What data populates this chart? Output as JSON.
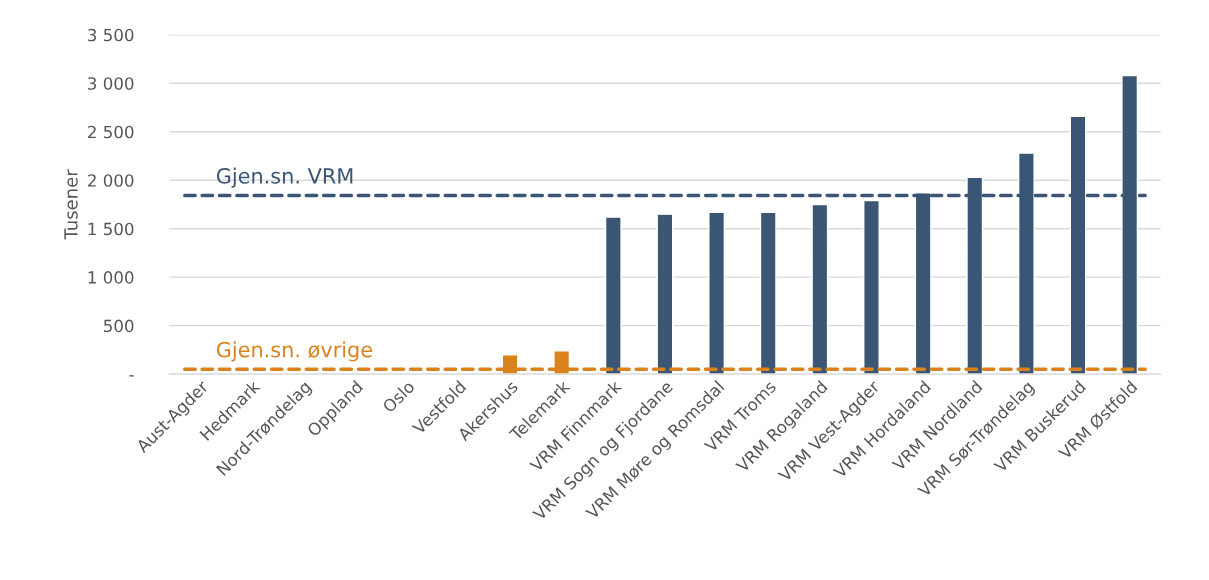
{
  "chart_data": {
    "type": "bar",
    "ylabel": "Tusener",
    "categories": [
      "Aust-Agder",
      "Hedmark",
      "Nord-Trøndelag",
      "Oppland",
      "Oslo",
      "Vestfold",
      "Akershus",
      "Telemark",
      "VRM Finnmark",
      "VRM Sogn og Fjordane",
      "VRM Møre og Romsdal",
      "VRM Troms",
      "VRM Rogaland",
      "VRM Vest-Agder",
      "VRM Hordaland",
      "VRM Nordland",
      "VRM Sør-Trøndelag",
      "VRM Buskerud",
      "VRM Østfold"
    ],
    "values": [
      0,
      0,
      0,
      0,
      0,
      0,
      200,
      240,
      1620,
      1650,
      1670,
      1670,
      1750,
      1790,
      1870,
      2030,
      2280,
      2660,
      3080
    ],
    "colors": [
      null,
      null,
      null,
      null,
      null,
      null,
      "#d9821e",
      "#d9821e",
      "#3a5674",
      "#3a5674",
      "#3a5674",
      "#3a5674",
      "#3a5674",
      "#3a5674",
      "#3a5674",
      "#3a5674",
      "#3a5674",
      "#3a5674",
      "#3a5674"
    ],
    "ylim": [
      0,
      3500
    ],
    "yticks": [
      {
        "value": 0,
        "label": "-"
      },
      {
        "value": 500,
        "label": "500"
      },
      {
        "value": 1000,
        "label": "1 000"
      },
      {
        "value": 1500,
        "label": "1 500"
      },
      {
        "value": 2000,
        "label": "2 000"
      },
      {
        "value": 2500,
        "label": "2 500"
      },
      {
        "value": 3000,
        "label": "3 000"
      },
      {
        "value": 3500,
        "label": "3 500"
      }
    ],
    "ref_lines": [
      {
        "axis": "y",
        "value": 1842,
        "label": "Gjen.sn. VRM",
        "color": "#3a5674",
        "line_style": "dashed"
      },
      {
        "axis": "y",
        "value": 50,
        "label": "Gjen.sn. øvrige",
        "color": "#d9821e",
        "line_style": "dashed"
      }
    ],
    "grid": "y",
    "legend": false
  }
}
